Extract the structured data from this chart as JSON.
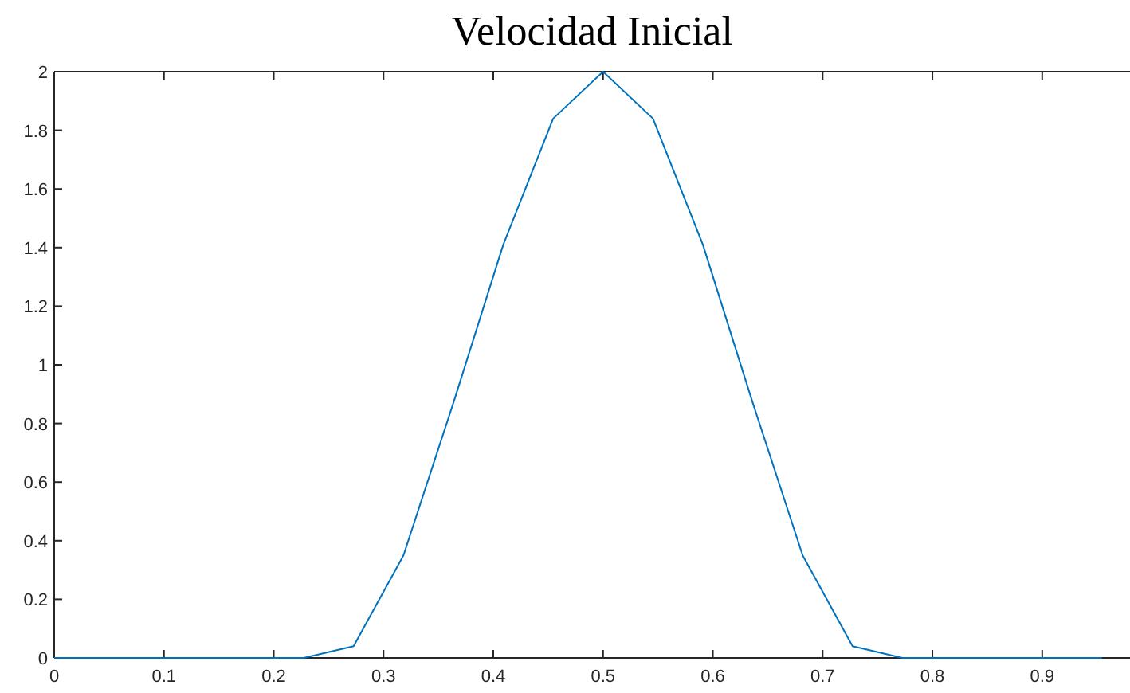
{
  "chart_data": {
    "type": "line",
    "title": "Velocidad Inicial",
    "x": [
      0,
      0.04545,
      0.09091,
      0.13636,
      0.18182,
      0.22727,
      0.27273,
      0.31818,
      0.36364,
      0.40909,
      0.45455,
      0.5,
      0.54545,
      0.59091,
      0.63636,
      0.68182,
      0.72727,
      0.77273,
      0.81818,
      0.86364,
      0.90909,
      0.95455
    ],
    "series": [
      {
        "color": "#0072bd",
        "values": [
          0,
          0,
          0,
          0,
          0,
          0,
          0.04,
          0.35,
          0.87,
          1.41,
          1.84,
          2,
          1.84,
          1.41,
          0.87,
          0.35,
          0.04,
          0,
          0,
          0,
          0,
          0
        ]
      }
    ],
    "xlim": [
      0,
      0.98
    ],
    "xticks": [
      0,
      0.1,
      0.2,
      0.3,
      0.4,
      0.5,
      0.6,
      0.7,
      0.8,
      0.9
    ],
    "ylim": [
      0,
      2
    ],
    "yticks": [
      0,
      0.2,
      0.4,
      0.6,
      0.8,
      1,
      1.2,
      1.4,
      1.6,
      1.8,
      2
    ],
    "grid": false
  }
}
